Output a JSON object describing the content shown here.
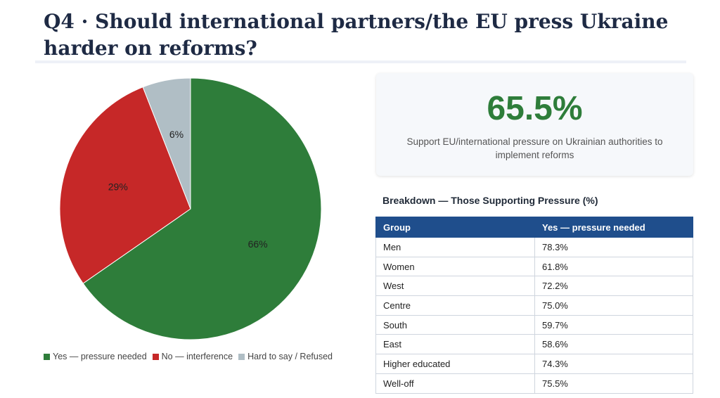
{
  "page": {
    "title": "Q4 · Should international partners/the EU press Ukraine harder on reforms?"
  },
  "chart_data": {
    "type": "pie",
    "slices": [
      {
        "label": "Yes — pressure needed",
        "value": 66,
        "display": "66%",
        "color": "#2e7d3a"
      },
      {
        "label": "No — interference",
        "value": 29,
        "display": "29%",
        "color": "#c62828"
      },
      {
        "label": "Hard to say / Refused",
        "value": 6,
        "display": "6%",
        "color": "#b0bec5"
      }
    ],
    "legend_position": "bottom"
  },
  "kpi": {
    "value": "65.5%",
    "description": "Support EU/international pressure on Ukrainian authorities to implement reforms",
    "color": "#2e7d3a"
  },
  "breakdown": {
    "title": "Breakdown — Those Supporting Pressure (%)",
    "columns": [
      "Group",
      "Yes — pressure needed"
    ],
    "rows": [
      [
        "Men",
        "78.3%"
      ],
      [
        "Women",
        "61.8%"
      ],
      [
        "West",
        "72.2%"
      ],
      [
        "Centre",
        "75.0%"
      ],
      [
        "South",
        "59.7%"
      ],
      [
        "East",
        "58.6%"
      ],
      [
        "Higher educated",
        "74.3%"
      ],
      [
        "Well-off",
        "75.5%"
      ]
    ]
  }
}
